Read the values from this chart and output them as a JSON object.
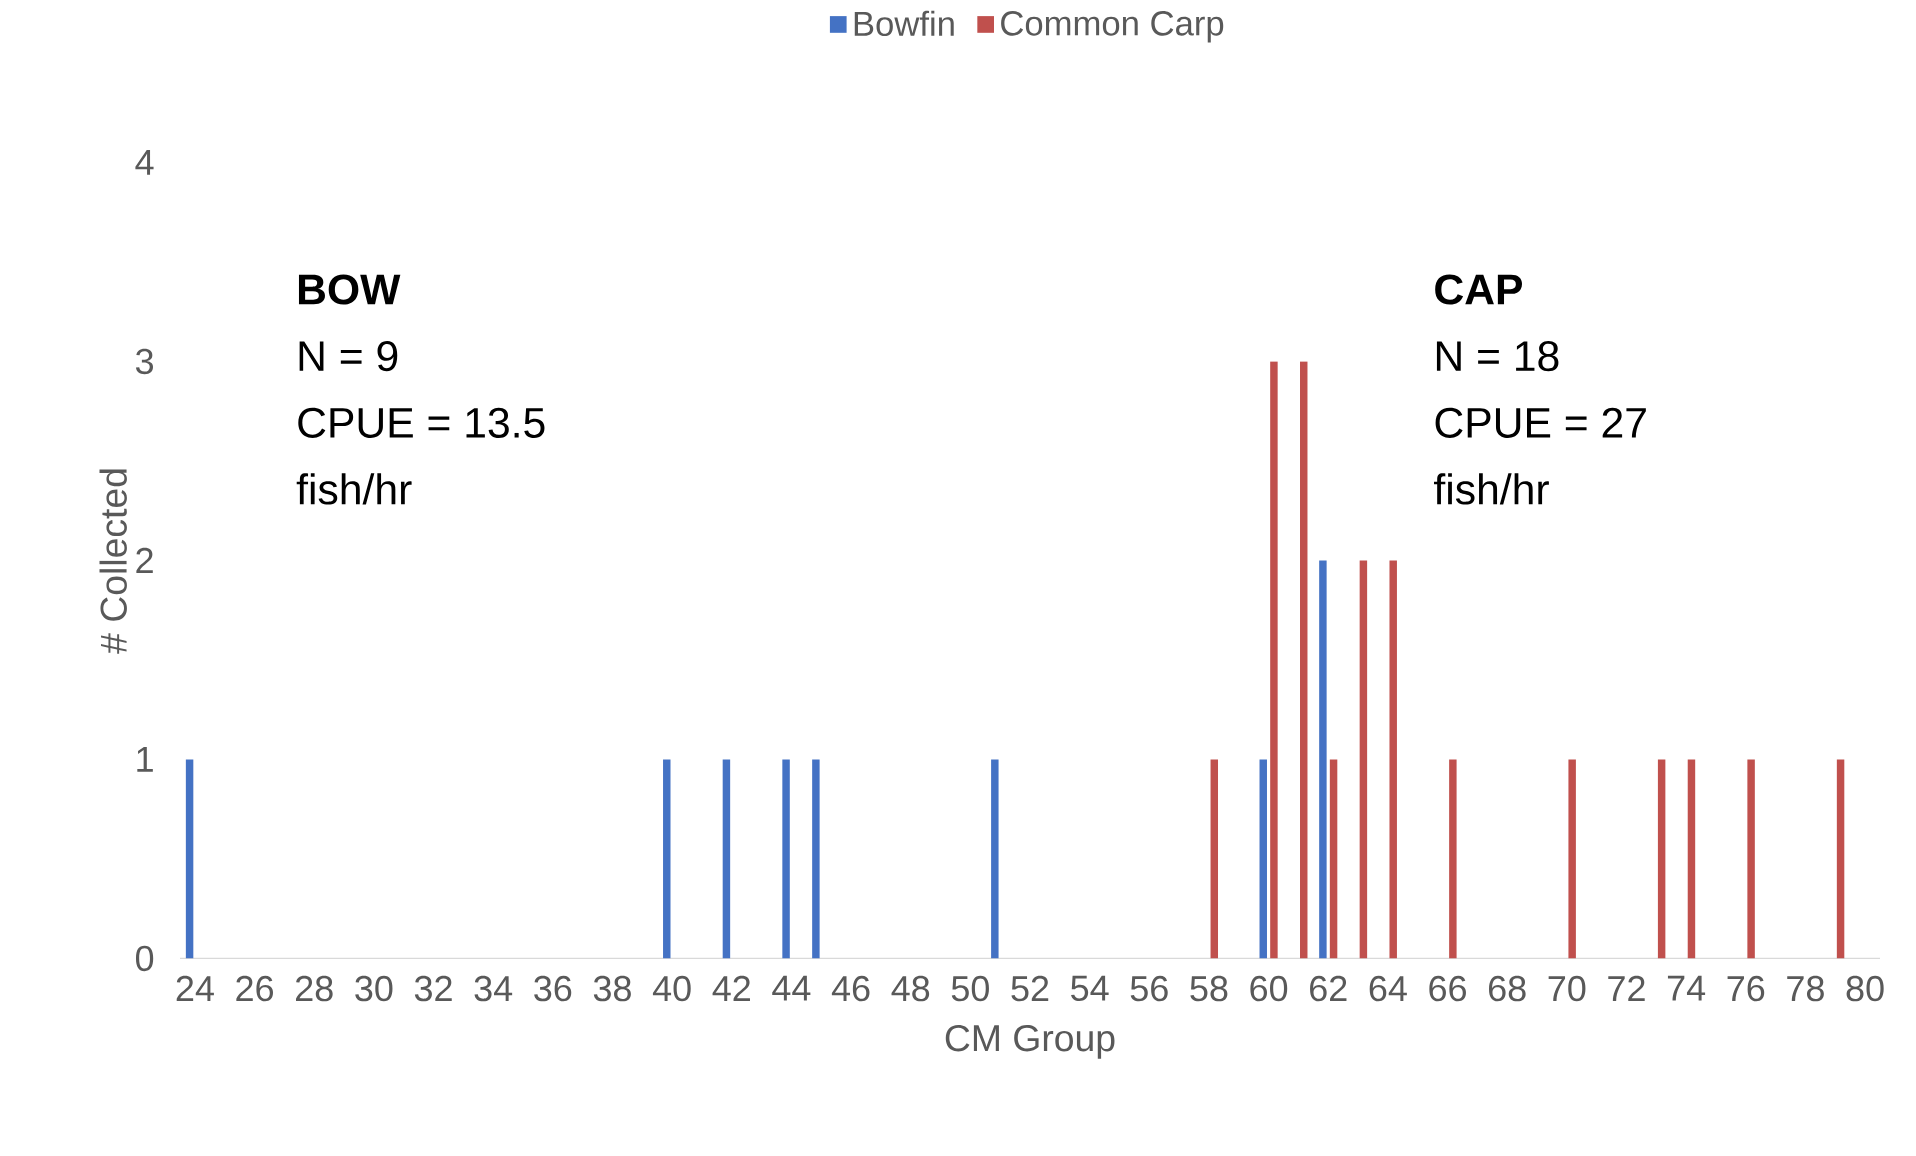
{
  "chart_data": {
    "type": "bar",
    "xlabel": "CM Group",
    "ylabel": "# Collected",
    "xlim": [
      23.5,
      80.5
    ],
    "ylim": [
      0,
      4
    ],
    "xticks": [
      24,
      26,
      28,
      30,
      32,
      34,
      36,
      38,
      40,
      42,
      44,
      46,
      48,
      50,
      52,
      54,
      56,
      58,
      60,
      62,
      64,
      66,
      68,
      70,
      72,
      74,
      76,
      78,
      80
    ],
    "yticks": [
      0,
      1,
      2,
      3,
      4
    ],
    "series": [
      {
        "name": "Bowfin",
        "color": "#4472c4",
        "x": [
          24,
          40,
          42,
          44,
          45,
          51,
          60,
          62
        ],
        "values": [
          1,
          1,
          1,
          1,
          1,
          1,
          1,
          2
        ]
      },
      {
        "name": "Common Carp",
        "color": "#c0504d",
        "x": [
          58,
          60,
          61,
          62,
          63,
          64,
          66,
          70,
          73,
          74,
          76,
          79
        ],
        "values": [
          1,
          3,
          3,
          1,
          2,
          2,
          1,
          1,
          1,
          1,
          1,
          1
        ]
      }
    ],
    "annotations": [
      "BOW",
      "N = 9",
      "CPUE = 13.5",
      "fish/hr",
      "CAP",
      "N = 18",
      "CPUE = 27",
      "fish/hr"
    ],
    "legend": "top",
    "grid": false
  }
}
